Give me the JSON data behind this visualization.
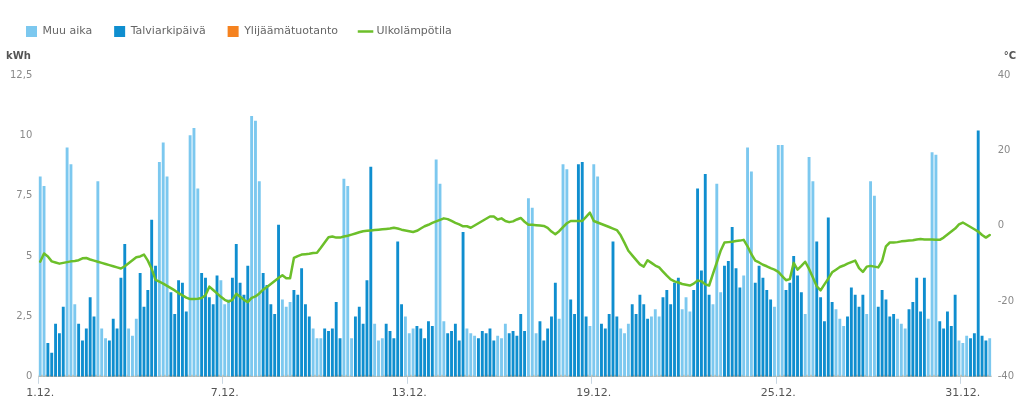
{
  "chart_data": {
    "type": "bar",
    "ylabel": "kWh",
    "y2label": "°C",
    "legend": "top left",
    "ylim": [
      0,
      12.5
    ],
    "yticks": [
      0,
      {
        "value": 2.5,
        "label": "2,5"
      },
      5,
      {
        "value": 7.5,
        "label": "7,5"
      },
      10,
      {
        "value": 12.5,
        "label": "12,5"
      }
    ],
    "y2lim": [
      -40,
      40
    ],
    "y2ticks": [
      -40,
      -20,
      0,
      20,
      40
    ],
    "categories": [
      "1.12.",
      null,
      null,
      null,
      null,
      null,
      null,
      null,
      null,
      null,
      null,
      null,
      null,
      null,
      null,
      null,
      null,
      null,
      null,
      null,
      null,
      null,
      null,
      null,
      null,
      null,
      null,
      null,
      null,
      null,
      null,
      null,
      null,
      null,
      null,
      null,
      null,
      null,
      null,
      null,
      null,
      null,
      null,
      null,
      null,
      null,
      null,
      null,
      "7.12.",
      null,
      null,
      null,
      null,
      null,
      null,
      null,
      null,
      null,
      null,
      null,
      null,
      null,
      null,
      null,
      null,
      null,
      null,
      null,
      null,
      null,
      null,
      null,
      null,
      null,
      null,
      null,
      null,
      null,
      null,
      null,
      null,
      null,
      null,
      null,
      null,
      null,
      null,
      null,
      null,
      null,
      null,
      null,
      null,
      null,
      null,
      null,
      "13.12.",
      null,
      null,
      null,
      null,
      null,
      null,
      null,
      null,
      null,
      null,
      null,
      null,
      null,
      null,
      null,
      null,
      null,
      null,
      null,
      null,
      null,
      null,
      null,
      null,
      null,
      null,
      null,
      null,
      null,
      null,
      null,
      null,
      null,
      null,
      null,
      null,
      null,
      null,
      null,
      null,
      null,
      null,
      null,
      null,
      null,
      null,
      null,
      "19.12.",
      null,
      null,
      null,
      null,
      null,
      null,
      null,
      null,
      null,
      null,
      null,
      null,
      null,
      null,
      null,
      null,
      null,
      null,
      null,
      null,
      null,
      null,
      null,
      null,
      null,
      null,
      null,
      null,
      null,
      null,
      null,
      null,
      null,
      null,
      null,
      null,
      null,
      null,
      null,
      null,
      null,
      null,
      null,
      null,
      null,
      null,
      null,
      "25.12.",
      null,
      null,
      null,
      null,
      null,
      null,
      null,
      null,
      null,
      null,
      null,
      null,
      null,
      null,
      null,
      null,
      null,
      null,
      null,
      null,
      null,
      null,
      null,
      null,
      null,
      null,
      null,
      null,
      null,
      null,
      null,
      null,
      null,
      null,
      null,
      null,
      null,
      null,
      null,
      null,
      null,
      null,
      null,
      null,
      null,
      null,
      null,
      "31.12.",
      null,
      null,
      null,
      null,
      null,
      null,
      null
    ],
    "series": [
      {
        "name": "Muu aika",
        "color": "#7cc8ef",
        "values": [
          8.3,
          7.9,
          null,
          null,
          null,
          null,
          null,
          9.5,
          8.8,
          3.0,
          null,
          null,
          null,
          null,
          null,
          8.1,
          2.0,
          1.6,
          null,
          null,
          null,
          null,
          null,
          2.0,
          1.7,
          2.4,
          null,
          null,
          null,
          null,
          null,
          8.9,
          9.7,
          8.3,
          null,
          null,
          null,
          null,
          null,
          10.0,
          10.3,
          7.8,
          null,
          null,
          null,
          null,
          null,
          4.0,
          3.0,
          3.2,
          null,
          null,
          null,
          null,
          null,
          10.8,
          10.6,
          8.1,
          null,
          null,
          null,
          null,
          null,
          3.2,
          2.9,
          3.1,
          null,
          null,
          null,
          null,
          null,
          2.0,
          1.6,
          1.6,
          null,
          null,
          null,
          null,
          null,
          8.2,
          7.9,
          1.6,
          null,
          null,
          null,
          null,
          null,
          2.2,
          1.5,
          1.6,
          null,
          null,
          null,
          null,
          null,
          2.5,
          1.8,
          2.0,
          null,
          null,
          null,
          null,
          null,
          9.0,
          8.0,
          2.3,
          null,
          null,
          null,
          null,
          null,
          2.0,
          1.8,
          1.7,
          null,
          null,
          null,
          null,
          null,
          1.7,
          1.6,
          2.2,
          null,
          null,
          null,
          null,
          null,
          7.4,
          7.0,
          1.8,
          null,
          null,
          null,
          null,
          null,
          2.4,
          8.8,
          8.6,
          null,
          null,
          null,
          null,
          null,
          2.1,
          8.8,
          8.3,
          null,
          null,
          null,
          null,
          null,
          2.0,
          1.8,
          2.2,
          null,
          null,
          null,
          null,
          null,
          2.5,
          2.8,
          2.5,
          null,
          null,
          null,
          null,
          null,
          2.8,
          3.3,
          2.7,
          null,
          null,
          null,
          null,
          null,
          3.0,
          8.0,
          3.5,
          null,
          null,
          null,
          null,
          null,
          4.2,
          9.5,
          8.5,
          null,
          null,
          null,
          null,
          null,
          2.9,
          9.6,
          9.6,
          null,
          null,
          null,
          null,
          null,
          2.6,
          9.1,
          8.1,
          null,
          null,
          null,
          null,
          null,
          2.8,
          2.4,
          2.1,
          null,
          null,
          null,
          null,
          null,
          2.6,
          8.1,
          7.5,
          null,
          null,
          null,
          null,
          null,
          2.4,
          2.2,
          2.0,
          null,
          null,
          null,
          null,
          null,
          2.4,
          9.3,
          9.2,
          null,
          null,
          null,
          null,
          null,
          1.5,
          1.4,
          1.7,
          null,
          null,
          null,
          null,
          null,
          1.6
        ]
      },
      {
        "name": "Talviarkipäivä",
        "color": "#0f8ecf",
        "values": [
          null,
          null,
          1.4,
          1.0,
          2.2,
          1.8,
          2.9,
          null,
          null,
          null,
          2.2,
          1.5,
          2.0,
          3.3,
          2.5,
          null,
          null,
          null,
          1.5,
          2.4,
          2.0,
          4.1,
          5.5,
          null,
          null,
          null,
          4.3,
          2.9,
          3.6,
          6.5,
          4.6,
          null,
          null,
          null,
          3.5,
          2.6,
          4.0,
          3.9,
          2.7,
          null,
          null,
          null,
          4.3,
          4.1,
          3.3,
          3.0,
          4.2,
          null,
          null,
          null,
          4.1,
          5.5,
          3.9,
          3.4,
          4.6,
          null,
          null,
          null,
          4.3,
          3.8,
          3.0,
          2.6,
          6.3,
          null,
          null,
          null,
          3.6,
          3.4,
          4.5,
          3.0,
          2.5,
          null,
          null,
          null,
          2.0,
          1.9,
          2.0,
          3.1,
          1.6,
          null,
          null,
          null,
          2.5,
          2.9,
          2.2,
          4.0,
          8.7,
          null,
          null,
          null,
          2.2,
          1.9,
          1.6,
          5.6,
          3.0,
          null,
          null,
          null,
          2.1,
          2.0,
          1.6,
          2.3,
          2.1,
          null,
          null,
          null,
          1.8,
          1.9,
          2.2,
          1.5,
          6.0,
          null,
          null,
          null,
          1.6,
          1.9,
          1.8,
          2.0,
          1.5,
          null,
          null,
          null,
          1.8,
          1.9,
          1.7,
          2.6,
          1.9,
          null,
          null,
          null,
          2.3,
          1.5,
          2.0,
          2.5,
          3.9,
          null,
          null,
          null,
          3.2,
          2.6,
          8.8,
          8.9,
          2.5,
          null,
          null,
          null,
          2.2,
          2.0,
          2.6,
          5.6,
          2.5,
          null,
          null,
          null,
          3.0,
          2.6,
          3.4,
          3.0,
          2.4,
          null,
          null,
          null,
          3.3,
          3.6,
          3.0,
          3.9,
          4.1,
          null,
          null,
          null,
          3.6,
          7.8,
          4.4,
          8.4,
          3.4,
          null,
          null,
          null,
          4.6,
          4.8,
          6.2,
          4.5,
          3.7,
          null,
          null,
          null,
          3.9,
          4.6,
          4.1,
          3.6,
          3.2,
          null,
          null,
          null,
          3.6,
          3.9,
          5.0,
          4.2,
          3.5,
          null,
          null,
          null,
          5.6,
          3.3,
          2.3,
          6.6,
          3.1,
          null,
          null,
          null,
          2.5,
          3.7,
          3.4,
          2.9,
          3.4,
          null,
          null,
          null,
          2.9,
          3.6,
          3.2,
          2.5,
          2.6,
          null,
          null,
          null,
          2.8,
          3.1,
          4.1,
          2.7,
          4.1,
          null,
          null,
          null,
          2.3,
          2.0,
          2.7,
          2.1,
          3.4,
          null,
          null,
          null,
          1.6,
          1.8,
          10.2,
          1.7,
          1.5,
          null
        ]
      },
      {
        "name": "Ylijäämätuotanto",
        "color": "#f5821f",
        "values": [
          0,
          0,
          0,
          0,
          0,
          0,
          0,
          0,
          0,
          0,
          0,
          0,
          0,
          0,
          0,
          0,
          0,
          0,
          0,
          0,
          0,
          0,
          0,
          0,
          0,
          0,
          0,
          0,
          0,
          0,
          0,
          0,
          0,
          0,
          0,
          0,
          0,
          0,
          0,
          0,
          0,
          0,
          0,
          0,
          0,
          0,
          0,
          0,
          0,
          0,
          0,
          0,
          0,
          0,
          0,
          0,
          0,
          0,
          0,
          0,
          0,
          0,
          0,
          0,
          0,
          0,
          0,
          0,
          0,
          0,
          0,
          0,
          0,
          0,
          0,
          0,
          0,
          0,
          0,
          0,
          0,
          0,
          0,
          0,
          0,
          0,
          0,
          0,
          0,
          0,
          0,
          0,
          0,
          0,
          0,
          0,
          0,
          0,
          0,
          0,
          0,
          0,
          0,
          0,
          0,
          0,
          0,
          0,
          0,
          0,
          0,
          0,
          0,
          0,
          0,
          0,
          0,
          0,
          0,
          0,
          0,
          0,
          0,
          0,
          0,
          0,
          0,
          0,
          0,
          0,
          0,
          0,
          0,
          0,
          0,
          0,
          0,
          0,
          0,
          0,
          0,
          0,
          0,
          0,
          0,
          0,
          0,
          0,
          0,
          0,
          0,
          0,
          0,
          0,
          0,
          0,
          0,
          0,
          0,
          0,
          0,
          0,
          0,
          0,
          0,
          0,
          0,
          0,
          0,
          0,
          0,
          0,
          0,
          0,
          0,
          0,
          0,
          0,
          0,
          0,
          0,
          0,
          0,
          0,
          0,
          0,
          0,
          0,
          0,
          0,
          0,
          0,
          0,
          0,
          0,
          0,
          0,
          0,
          0,
          0,
          0,
          0,
          0,
          0,
          0,
          0,
          0,
          0,
          0,
          0,
          0,
          0,
          0,
          0,
          0,
          0,
          0,
          0,
          0,
          0,
          0,
          0,
          0,
          0,
          0,
          0,
          0,
          0,
          0,
          0,
          0,
          0,
          0,
          0,
          0,
          0,
          0,
          0,
          0,
          0,
          0,
          0,
          0,
          0,
          0,
          0,
          0,
          0
        ]
      },
      {
        "name": "Ulkolämpötila",
        "type": "line",
        "axis": "y2",
        "color": "#6cbf2a",
        "values": [
          -9.5,
          -7.3,
          -8.1,
          -9.4,
          -9.7,
          -10,
          -9.8,
          -9.6,
          -9.4,
          -9.3,
          -9.1,
          -8.6,
          -8.5,
          -8.9,
          -9.2,
          -9.5,
          -9.8,
          -10.1,
          -10.4,
          -10.7,
          -11,
          -11.3,
          -10.7,
          -9.9,
          -9.1,
          -8.3,
          -8.1,
          -7.6,
          -9.2,
          -11.4,
          -14.3,
          -14.8,
          -15.3,
          -15.9,
          -16.5,
          -17.1,
          -17.8,
          -18.4,
          -19,
          -19.4,
          -19.4,
          -19.3,
          -19.1,
          -18.4,
          -16.1,
          -17,
          -17.9,
          -18.8,
          -19.6,
          -20.1,
          -19.6,
          -18,
          -18.8,
          -19.6,
          -20.2,
          -19.1,
          -18.7,
          -17.9,
          -16.9,
          -16.2,
          -15.4,
          -14.6,
          -13.8,
          -13.1,
          -13.9,
          -13.9,
          -8.5,
          -8,
          -7.6,
          -7.5,
          -7.4,
          -7.2,
          -7.1,
          -5.8,
          -4.4,
          -3,
          -2.8,
          -3.1,
          -3.1,
          -2.8,
          -2.6,
          -2.3,
          -2,
          -1.7,
          -1.4,
          -1.3,
          -1.2,
          -1.1,
          -1,
          -0.9,
          -0.8,
          -0.7,
          -0.5,
          -0.7,
          -1,
          -1.2,
          -1.4,
          -1.6,
          -1.3,
          -0.7,
          -0.1,
          0.3,
          0.8,
          1.2,
          1.6,
          2,
          1.8,
          1.3,
          0.8,
          0.4,
          -0.1,
          -0.1,
          -0.5,
          0.1,
          0.7,
          1.3,
          1.9,
          2.5,
          2.5,
          1.7,
          2,
          1.3,
          1,
          1.2,
          1.7,
          2.1,
          1.1,
          0.3,
          0.3,
          0.2,
          0.1,
          0,
          -0.5,
          -1.5,
          -2.2,
          -1.4,
          -0.3,
          0.7,
          1.3,
          1.3,
          1.3,
          1.3,
          2.4,
          3.5,
          1.3,
          0.9,
          0.5,
          0.1,
          -0.3,
          -0.7,
          -1.1,
          -2.5,
          -4.5,
          -6.6,
          -7.8,
          -9,
          -10.2,
          -10.8,
          -9.1,
          -9.8,
          -10.5,
          -11,
          -12.1,
          -13.2,
          -14.2,
          -14.7,
          -15,
          -15.4,
          -15.6,
          -15.8,
          -15.3,
          -14.5,
          -14.7,
          -15.5,
          -15.8,
          -12.7,
          -9.7,
          -6.6,
          -4.4,
          -4.3,
          -4.2,
          -4,
          -3.9,
          -3.7,
          -5.4,
          -7.5,
          -9.2,
          -9.7,
          -10.3,
          -10.7,
          -11.2,
          -11.6,
          -12.2,
          -13.3,
          -14.4,
          -14.1,
          -9.8,
          -11.6,
          -10.6,
          -9.5,
          -11.4,
          -13.7,
          -16,
          -17.1,
          -15.5,
          -14,
          -12.3,
          -11.6,
          -10.9,
          -10.5,
          -10,
          -9.6,
          -9.2,
          -11.2,
          -12.2,
          -10.8,
          -10.6,
          -10.8,
          -11,
          -9.3,
          -5.4,
          -4.4,
          -4.4,
          -4.3,
          -4.1,
          -4,
          -3.9,
          -3.8,
          -3.6,
          -3.5,
          -3.6,
          -3.6,
          -3.6,
          -3.7,
          -3.7,
          -3.1,
          -2.3,
          -1.5,
          -0.7,
          0.4,
          0.9,
          0.3,
          -0.3,
          -0.9,
          -1.5,
          -2.4,
          -3.1,
          -2.4
        ]
      }
    ]
  }
}
